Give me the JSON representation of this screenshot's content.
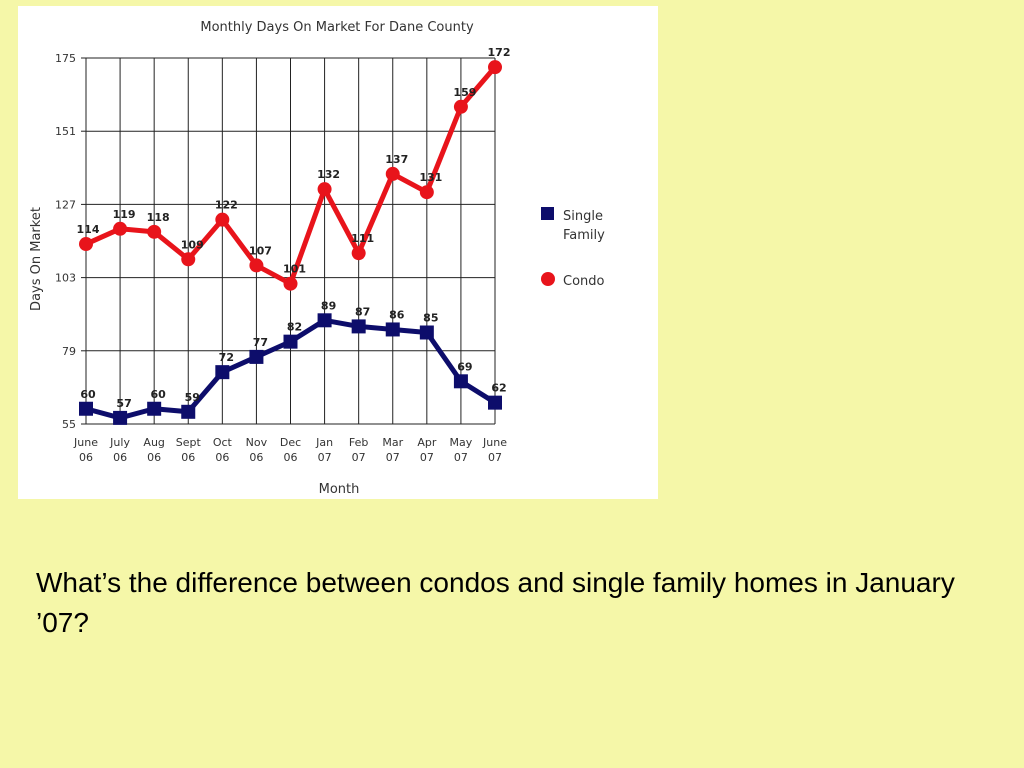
{
  "question": "What’s the difference between condos and single family homes in January ’07?",
  "chart_data": {
    "type": "line",
    "title": "Monthly Days On Market For Dane County",
    "xlabel": "Month",
    "ylabel": "Days On Market",
    "ylim": [
      55,
      175
    ],
    "yticks": [
      55,
      79,
      103,
      127,
      151,
      175
    ],
    "grid": true,
    "legend_position": "right",
    "categories": [
      [
        "June",
        "06"
      ],
      [
        "July",
        "06"
      ],
      [
        "Aug",
        "06"
      ],
      [
        "Sept",
        "06"
      ],
      [
        "Oct",
        "06"
      ],
      [
        "Nov",
        "06"
      ],
      [
        "Dec",
        "06"
      ],
      [
        "Jan",
        "07"
      ],
      [
        "Feb",
        "07"
      ],
      [
        "Mar",
        "07"
      ],
      [
        "Apr",
        "07"
      ],
      [
        "May",
        "07"
      ],
      [
        "June",
        "07"
      ]
    ],
    "series": [
      {
        "name": "Single Family",
        "legend_lines": [
          "Single",
          "Family"
        ],
        "color": "#0d0d6b",
        "marker": "square",
        "values": [
          60,
          57,
          60,
          59,
          72,
          77,
          82,
          89,
          87,
          86,
          85,
          69,
          62
        ]
      },
      {
        "name": "Condo",
        "legend_lines": [
          "Condo"
        ],
        "color": "#e8141b",
        "marker": "circle",
        "values": [
          114,
          119,
          118,
          109,
          122,
          107,
          101,
          132,
          111,
          137,
          131,
          159,
          172
        ]
      }
    ]
  }
}
